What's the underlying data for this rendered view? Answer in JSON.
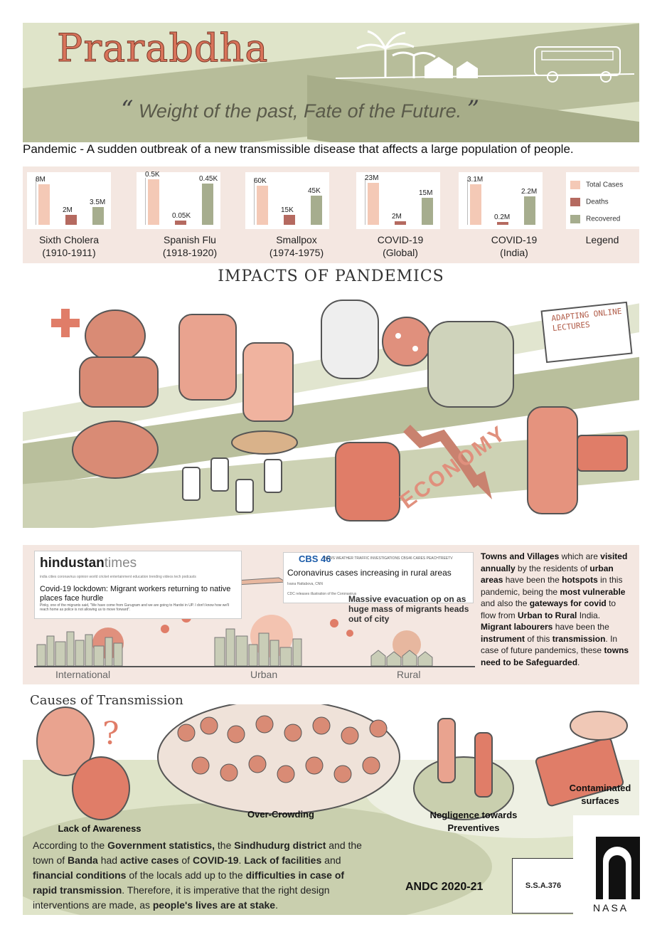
{
  "header": {
    "title": "Prarabdha",
    "quote_open": "“",
    "quote": "Weight of the past, Fate of the Future.",
    "quote_close": "”"
  },
  "definition": "Pandemic - A sudden outbreak of a new transmissible disease that affects a large population of people.",
  "stats": {
    "legend": {
      "total": "Total Cases",
      "deaths": "Deaths",
      "recovered": "Recovered",
      "label": "Legend"
    },
    "colors": {
      "total": "#f4c9b6",
      "deaths": "#b56a60",
      "recovered": "#a6ad8e"
    },
    "charts": [
      {
        "name": "Sixth Cholera",
        "years": "(1910-1911)",
        "labels": [
          "8M",
          "2M",
          "3.5M"
        ],
        "values": [
          8,
          2,
          3.5
        ],
        "max": 9
      },
      {
        "name": "Spanish Flu",
        "years": "(1918-1920)",
        "labels": [
          "0.5K",
          "0.05K",
          "0.45K"
        ],
        "values": [
          500,
          50,
          450
        ],
        "max": 500
      },
      {
        "name": "Smallpox",
        "years": "(1974-1975)",
        "labels": [
          "60K",
          "15K",
          "45K"
        ],
        "values": [
          60,
          15,
          45
        ],
        "max": 70
      },
      {
        "name": "COVID-19",
        "years": "(Global)",
        "labels": [
          "23M",
          "2M",
          "15M"
        ],
        "values": [
          23,
          2,
          15
        ],
        "max": 25
      },
      {
        "name": "COVID-19",
        "years": "(India)",
        "labels": [
          "3.1M",
          "0.2M",
          "2.2M"
        ],
        "values": [
          3.1,
          0.2,
          2.2
        ],
        "max": 3.5
      }
    ]
  },
  "impacts": {
    "title": "IMPACTS OF PANDEMICS",
    "laptop_text": "ADAPTING ONLINE LECTURES",
    "economy": "ECONOMY"
  },
  "migration": {
    "ht_logo_main": "hindustan",
    "ht_logo_sub": "times",
    "ht_nav": "india cities coronavirus opinion world cricket entertainment education trending videos tech podcasts",
    "ht_headline": "Covid-19 lockdown: Migrant workers returning to native places face hurdle",
    "ht_sub": "Pinky, one of the migrants said, \"We have come from Gurugram and we are going to Hardoi in UP. I don't know how we'll reach home as police is not allowing us to move forward\".",
    "cbs_logo": "CBS 46",
    "cbs_nav": "NEWS  WEATHER  TRAFFIC  INVESTIGATIONS  CBS46 CARES  PEACHTREETV",
    "cbs_headline": "Coronavirus cases increasing in rural areas",
    "cbs_byline": "Ivana Hattabova, CNN",
    "cbs_caption": "CDC releases illustration of the Coronavirus",
    "mass_headline": "Massive evacuation op on as huge mass of migrants heads out of city",
    "zones": [
      "International",
      "Urban",
      "Rural"
    ]
  },
  "towns_text_parts": [
    {
      "t": "Towns and Villages",
      "b": true
    },
    {
      "t": " which are ",
      "b": false
    },
    {
      "t": "visited annually",
      "b": true
    },
    {
      "t": " by the residents of ",
      "b": false
    },
    {
      "t": "urban areas",
      "b": true
    },
    {
      "t": " have been the ",
      "b": false
    },
    {
      "t": "hotspots",
      "b": true
    },
    {
      "t": " in this pandemic, being the ",
      "b": false
    },
    {
      "t": "most vulnerable",
      "b": true
    },
    {
      "t": " and also the ",
      "b": false
    },
    {
      "t": "gateways for covid",
      "b": true
    },
    {
      "t": " to flow from ",
      "b": false
    },
    {
      "t": "Urban to Rural",
      "b": true
    },
    {
      "t": " India. ",
      "b": false
    },
    {
      "t": "Migrant labourers",
      "b": true
    },
    {
      "t": " have been the ",
      "b": false
    },
    {
      "t": "instrument",
      "b": true
    },
    {
      "t": " of this ",
      "b": false
    },
    {
      "t": "transmission",
      "b": true
    },
    {
      "t": ". In case of future pandemics, these ",
      "b": false
    },
    {
      "t": "towns need to be Safeguarded",
      "b": true
    },
    {
      "t": ".",
      "b": false
    }
  ],
  "causes": {
    "title": "Causes of Transmission",
    "items": [
      "Lack of Awareness",
      "Over-Crowding",
      "Negligence towards Preventives",
      "Contaminated surfaces"
    ]
  },
  "final_text_parts": [
    {
      "t": "According to the ",
      "b": false
    },
    {
      "t": "Government statistics,",
      "b": true
    },
    {
      "t": " the ",
      "b": false
    },
    {
      "t": "Sindhudurg district",
      "b": true
    },
    {
      "t": " and the town of ",
      "b": false
    },
    {
      "t": "Banda",
      "b": true
    },
    {
      "t": " had ",
      "b": false
    },
    {
      "t": "active cases",
      "b": true
    },
    {
      "t": " of ",
      "b": false
    },
    {
      "t": "COVID-19",
      "b": true
    },
    {
      "t": ". ",
      "b": false
    },
    {
      "t": "Lack of facilities",
      "b": true
    },
    {
      "t": " and ",
      "b": false
    },
    {
      "t": "financial conditions",
      "b": true
    },
    {
      "t": " of the locals add up to the ",
      "b": false
    },
    {
      "t": "difficulties in case of rapid transmission",
      "b": true
    },
    {
      "t": ". Therefore, it is imperative that the right design interventions are made, as ",
      "b": false
    },
    {
      "t": "people's lives are at stake",
      "b": true
    },
    {
      "t": ".",
      "b": false
    }
  ],
  "footer": {
    "andc": "ANDC 2020-21",
    "ssa": "S.S.A.376",
    "nasa": "NASA"
  }
}
